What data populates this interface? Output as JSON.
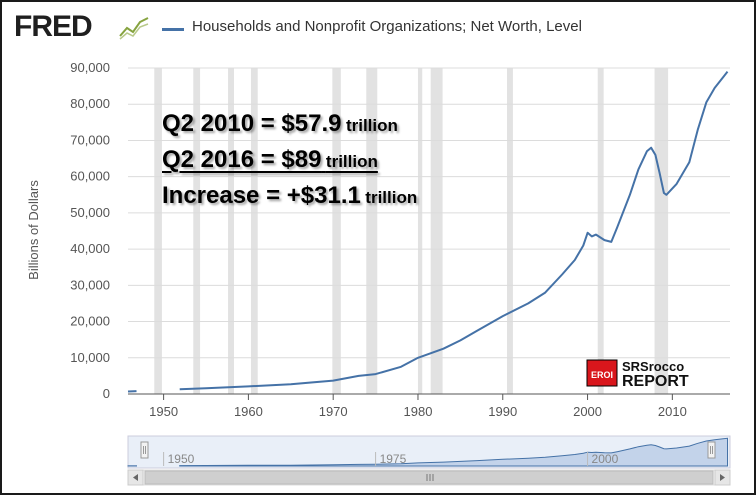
{
  "header": {
    "logo_text": "FRED",
    "logo_icon": "fred-chart-line-icon",
    "series_title": "Households and Nonprofit Organizations; Net Worth, Level",
    "series_color": "#4572a7"
  },
  "annotations": [
    {
      "main": "Q2 2010 = $57.9",
      "unit": "trillion"
    },
    {
      "main": "Q2 2016 = $89",
      "unit": "trillion"
    },
    {
      "main": "Increase = +$31.1",
      "unit": "trillion"
    }
  ],
  "watermark": {
    "badge": "EROI",
    "line1": "SRSrocco",
    "line2": "REPORT",
    "badge_color": "#d9161c"
  },
  "chart_data": {
    "type": "line",
    "title": "Households and Nonprofit Organizations; Net Worth, Level",
    "ylabel": "Billions of Dollars",
    "xlabel": "",
    "xlim": [
      1945.8,
      2016.8
    ],
    "ylim": [
      0,
      90000
    ],
    "y_ticks": [
      0,
      10000,
      20000,
      30000,
      40000,
      50000,
      60000,
      70000,
      80000,
      90000
    ],
    "y_tick_labels": [
      "0",
      "10,000",
      "20,000",
      "30,000",
      "40,000",
      "50,000",
      "60,000",
      "70,000",
      "80,000",
      "90,000"
    ],
    "x_ticks": [
      1950,
      1960,
      1970,
      1980,
      1990,
      2000,
      2010
    ],
    "x_tick_labels": [
      "1950",
      "1960",
      "1970",
      "1980",
      "1990",
      "2000",
      "2010"
    ],
    "grid": "horizontal",
    "line_color": "#4572a7",
    "recession_color": "#e2e2e2",
    "recessions": [
      [
        1948.9,
        1949.8
      ],
      [
        1953.5,
        1954.3
      ],
      [
        1957.6,
        1958.3
      ],
      [
        1960.3,
        1961.1
      ],
      [
        1969.9,
        1970.9
      ],
      [
        1973.9,
        1975.2
      ],
      [
        1980.0,
        1980.5
      ],
      [
        1981.5,
        1982.9
      ],
      [
        1990.5,
        1991.2
      ],
      [
        2001.2,
        2001.9
      ],
      [
        2007.9,
        2009.5
      ]
    ],
    "series": [
      {
        "segments": [
          {
            "x": [
              1945.8,
              1946.8
            ],
            "y": [
              700,
              800
            ]
          },
          {
            "x": [
              1951.9,
              1955,
              1960,
              1965,
              1970,
              1973,
              1975,
              1978,
              1980,
              1983,
              1985,
              1987,
              1990,
              1993,
              1995,
              1997,
              1998.5,
              1999.5,
              2000,
              2000.5,
              2001,
              2002,
              2002.8,
              2003.5,
              2005,
              2006,
              2007,
              2007.5,
              2008,
              2008.5,
              2009,
              2009.3,
              2010.5,
              2011.5,
              2012,
              2013,
              2014,
              2015,
              2016,
              2016.5
            ],
            "y": [
              1300,
              1600,
              2100,
              2700,
              3700,
              5000,
              5500,
              7500,
              10000,
              12500,
              14800,
              17500,
              21500,
              25000,
              28000,
              33000,
              37000,
              41000,
              44500,
              43500,
              44000,
              42500,
              42000,
              46000,
              55000,
              62000,
              67000,
              68000,
              66000,
              61000,
              55500,
              55000,
              58000,
              62000,
              64000,
              73000,
              80500,
              84500,
              87500,
              89000
            ]
          }
        ]
      }
    ],
    "navigator": {
      "x_labels": [
        "1950",
        "1975",
        "2000"
      ],
      "x_label_values": [
        1950,
        1975,
        2000
      ]
    }
  }
}
